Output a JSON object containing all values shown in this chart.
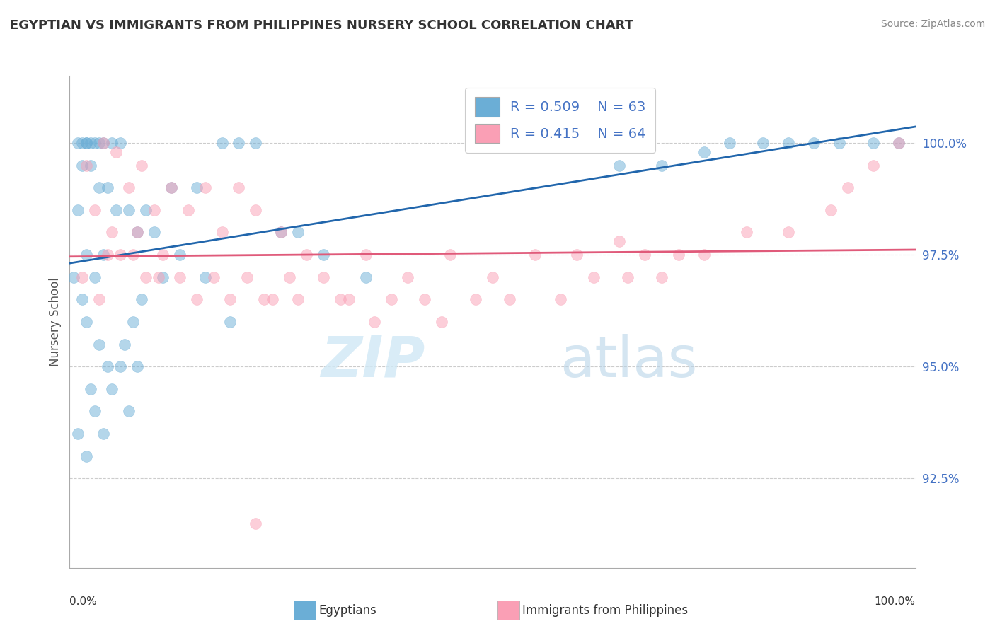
{
  "title": "EGYPTIAN VS IMMIGRANTS FROM PHILIPPINES NURSERY SCHOOL CORRELATION CHART",
  "source": "Source: ZipAtlas.com",
  "ylabel": "Nursery School",
  "yticks": [
    92.5,
    95.0,
    97.5,
    100.0
  ],
  "ytick_labels": [
    "92.5%",
    "95.0%",
    "97.5%",
    "100.0%"
  ],
  "xlim": [
    0.0,
    100.0
  ],
  "ylim": [
    90.5,
    101.5
  ],
  "blue_R": 0.509,
  "blue_N": 63,
  "pink_R": 0.415,
  "pink_N": 64,
  "blue_color": "#6baed6",
  "pink_color": "#fa9fb5",
  "blue_line_color": "#2166ac",
  "pink_line_color": "#e05a7a",
  "legend_blue_label": "Egyptians",
  "legend_pink_label": "Immigrants from Philippines",
  "blue_scatter_x": [
    2.0,
    3.5,
    5.0,
    1.5,
    2.5,
    4.0,
    6.0,
    1.0,
    2.0,
    3.0,
    1.5,
    2.5,
    3.5,
    4.5,
    5.5,
    7.0,
    8.0,
    9.0,
    10.0,
    12.0,
    15.0,
    18.0,
    20.0,
    22.0,
    25.0,
    1.0,
    2.0,
    3.0,
    4.0,
    0.5,
    1.5,
    2.0,
    3.5,
    4.5,
    6.5,
    7.5,
    8.5,
    11.0,
    13.0,
    16.0,
    19.0,
    2.5,
    3.0,
    5.0,
    6.0,
    1.0,
    2.0,
    4.0,
    7.0,
    8.0,
    27.0,
    30.0,
    35.0,
    65.0,
    70.0,
    75.0,
    78.0,
    82.0,
    85.0,
    88.0,
    91.0,
    95.0,
    98.0
  ],
  "blue_scatter_y": [
    100.0,
    100.0,
    100.0,
    100.0,
    100.0,
    100.0,
    100.0,
    100.0,
    100.0,
    100.0,
    99.5,
    99.5,
    99.0,
    99.0,
    98.5,
    98.5,
    98.0,
    98.5,
    98.0,
    99.0,
    99.0,
    100.0,
    100.0,
    100.0,
    98.0,
    98.5,
    97.5,
    97.0,
    97.5,
    97.0,
    96.5,
    96.0,
    95.5,
    95.0,
    95.5,
    96.0,
    96.5,
    97.0,
    97.5,
    97.0,
    96.0,
    94.5,
    94.0,
    94.5,
    95.0,
    93.5,
    93.0,
    93.5,
    94.0,
    95.0,
    98.0,
    97.5,
    97.0,
    99.5,
    99.5,
    99.8,
    100.0,
    100.0,
    100.0,
    100.0,
    100.0,
    100.0,
    100.0
  ],
  "pink_scatter_x": [
    2.0,
    4.0,
    5.5,
    7.0,
    8.5,
    10.0,
    12.0,
    14.0,
    16.0,
    18.0,
    20.0,
    22.0,
    25.0,
    28.0,
    30.0,
    35.0,
    40.0,
    45.0,
    50.0,
    55.0,
    60.0,
    65.0,
    68.0,
    72.0,
    3.0,
    5.0,
    6.0,
    9.0,
    11.0,
    13.0,
    15.0,
    17.0,
    19.0,
    21.0,
    24.0,
    26.0,
    32.0,
    38.0,
    42.0,
    48.0,
    1.5,
    3.5,
    4.5,
    7.5,
    8.0,
    10.5,
    23.0,
    27.0,
    33.0,
    36.0,
    44.0,
    52.0,
    58.0,
    62.0,
    66.0,
    70.0,
    75.0,
    80.0,
    85.0,
    90.0,
    92.0,
    95.0,
    98.0,
    22.0
  ],
  "pink_scatter_y": [
    99.5,
    100.0,
    99.8,
    99.0,
    99.5,
    98.5,
    99.0,
    98.5,
    99.0,
    98.0,
    99.0,
    98.5,
    98.0,
    97.5,
    97.0,
    97.5,
    97.0,
    97.5,
    97.0,
    97.5,
    97.5,
    97.8,
    97.5,
    97.5,
    98.5,
    98.0,
    97.5,
    97.0,
    97.5,
    97.0,
    96.5,
    97.0,
    96.5,
    97.0,
    96.5,
    97.0,
    96.5,
    96.5,
    96.5,
    96.5,
    97.0,
    96.5,
    97.5,
    97.5,
    98.0,
    97.0,
    96.5,
    96.5,
    96.5,
    96.0,
    96.0,
    96.5,
    96.5,
    97.0,
    97.0,
    97.0,
    97.5,
    98.0,
    98.0,
    98.5,
    99.0,
    99.5,
    100.0,
    91.5
  ]
}
